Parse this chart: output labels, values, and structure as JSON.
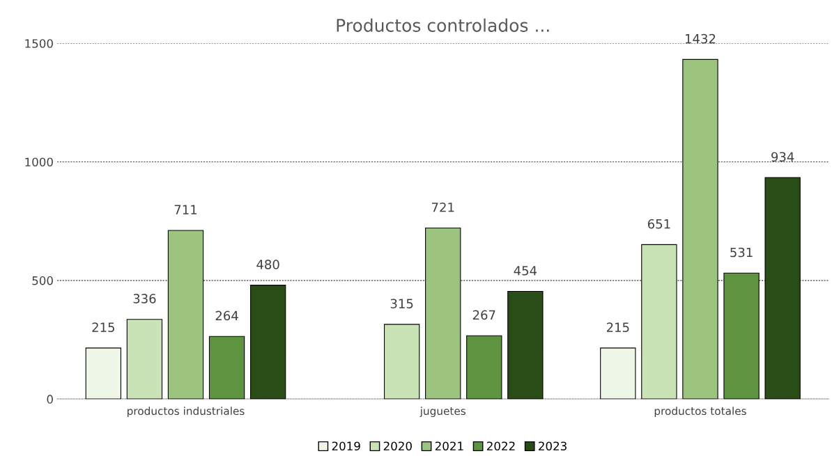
{
  "chart_data": {
    "type": "bar",
    "title": "Productos controlados ...",
    "categories": [
      "productos industriales",
      "juguetes",
      "productos totales"
    ],
    "series": [
      {
        "name": "2019",
        "color": "#eef6e8",
        "values": [
          215,
          null,
          215
        ]
      },
      {
        "name": "2020",
        "color": "#c9e3b6",
        "values": [
          336,
          315,
          651
        ]
      },
      {
        "name": "2021",
        "color": "#9cc47f",
        "values": [
          711,
          721,
          1432
        ]
      },
      {
        "name": "2022",
        "color": "#5e9440",
        "values": [
          264,
          267,
          531
        ]
      },
      {
        "name": "2023",
        "color": "#2a4d18",
        "values": [
          480,
          454,
          934
        ]
      }
    ],
    "ylim": [
      0,
      1500
    ],
    "yticks": [
      0,
      500,
      1000,
      1500
    ],
    "grid": "y",
    "legend": "bottom",
    "data_labels": true
  }
}
